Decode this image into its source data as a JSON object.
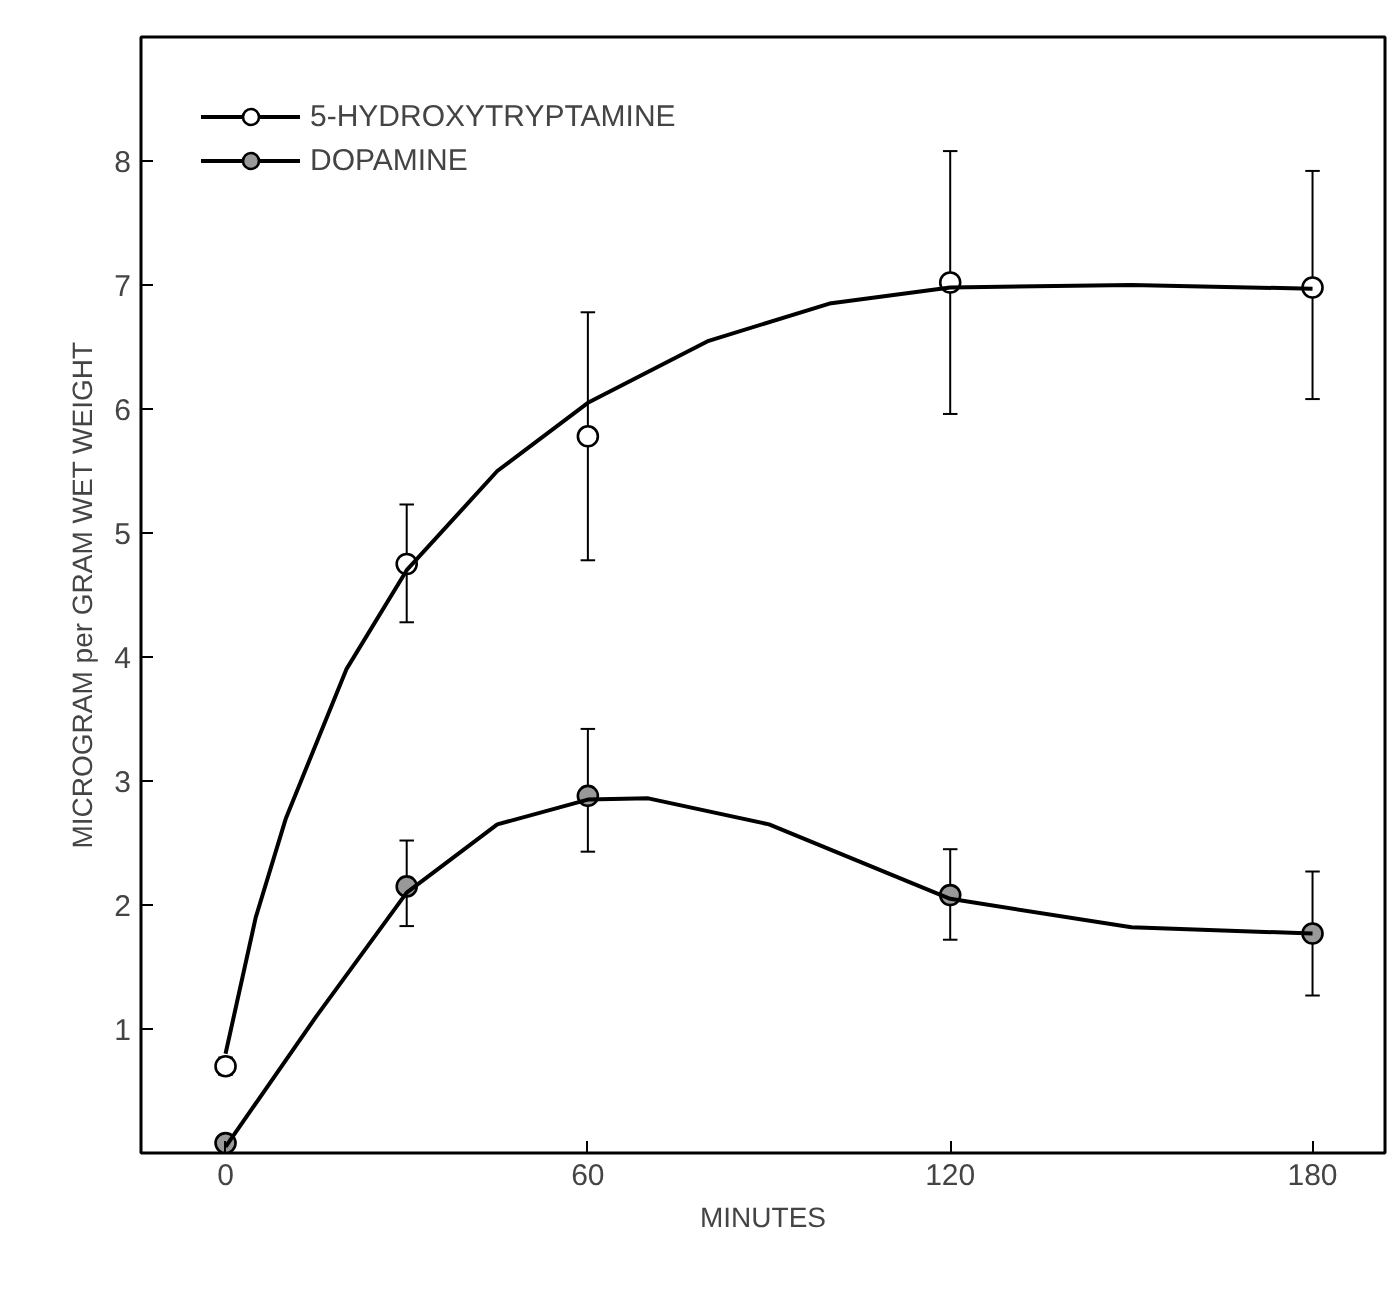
{
  "chart_data": {
    "type": "scatter",
    "xlabel": "MINUTES",
    "ylabel": "MICROGRAM per GRAM WET WEIGHT",
    "x": [
      0,
      30,
      60,
      120,
      180
    ],
    "xlim": [
      -14,
      192
    ],
    "ylim": [
      0,
      9
    ],
    "xticks": [
      0,
      60,
      120,
      180
    ],
    "yticks": [
      1,
      2,
      3,
      4,
      5,
      6,
      7,
      8
    ],
    "grid": false,
    "legend": "top left",
    "series": [
      {
        "name": "5-HYDROXYTRYPTAMINE",
        "color": "#ffffff",
        "marker": "circle",
        "values": [
          0.7,
          4.75,
          5.78,
          7.02,
          6.98
        ],
        "errors": [
          0.07,
          [
            4.28,
            5.23
          ],
          [
            4.78,
            6.78
          ],
          [
            5.96,
            8.08
          ],
          [
            6.08,
            7.92
          ]
        ]
      },
      {
        "name": "DOPAMINE",
        "color": "#999999",
        "marker": "circle",
        "values": [
          0.08,
          2.15,
          2.88,
          2.08,
          1.77
        ],
        "errors": [
          null,
          [
            1.83,
            2.52
          ],
          [
            2.43,
            3.42
          ],
          [
            1.72,
            2.45
          ],
          [
            1.27,
            2.27
          ]
        ]
      },
      {
        "type": "line",
        "marker": "none",
        "color": "#000000",
        "x": [
          0,
          5,
          10,
          20,
          30,
          45,
          60,
          80,
          100,
          120,
          150,
          180
        ],
        "values": [
          0.8,
          1.9,
          2.7,
          3.9,
          4.7,
          5.5,
          6.05,
          6.55,
          6.85,
          6.98,
          7.0,
          6.97
        ]
      },
      {
        "type": "line",
        "marker": "none",
        "color": "#000000",
        "x": [
          0,
          15,
          30,
          45,
          60,
          70,
          90,
          105,
          120,
          150,
          180
        ],
        "values": [
          0.05,
          1.1,
          2.1,
          2.65,
          2.85,
          2.86,
          2.65,
          2.35,
          2.05,
          1.82,
          1.77
        ]
      }
    ]
  }
}
